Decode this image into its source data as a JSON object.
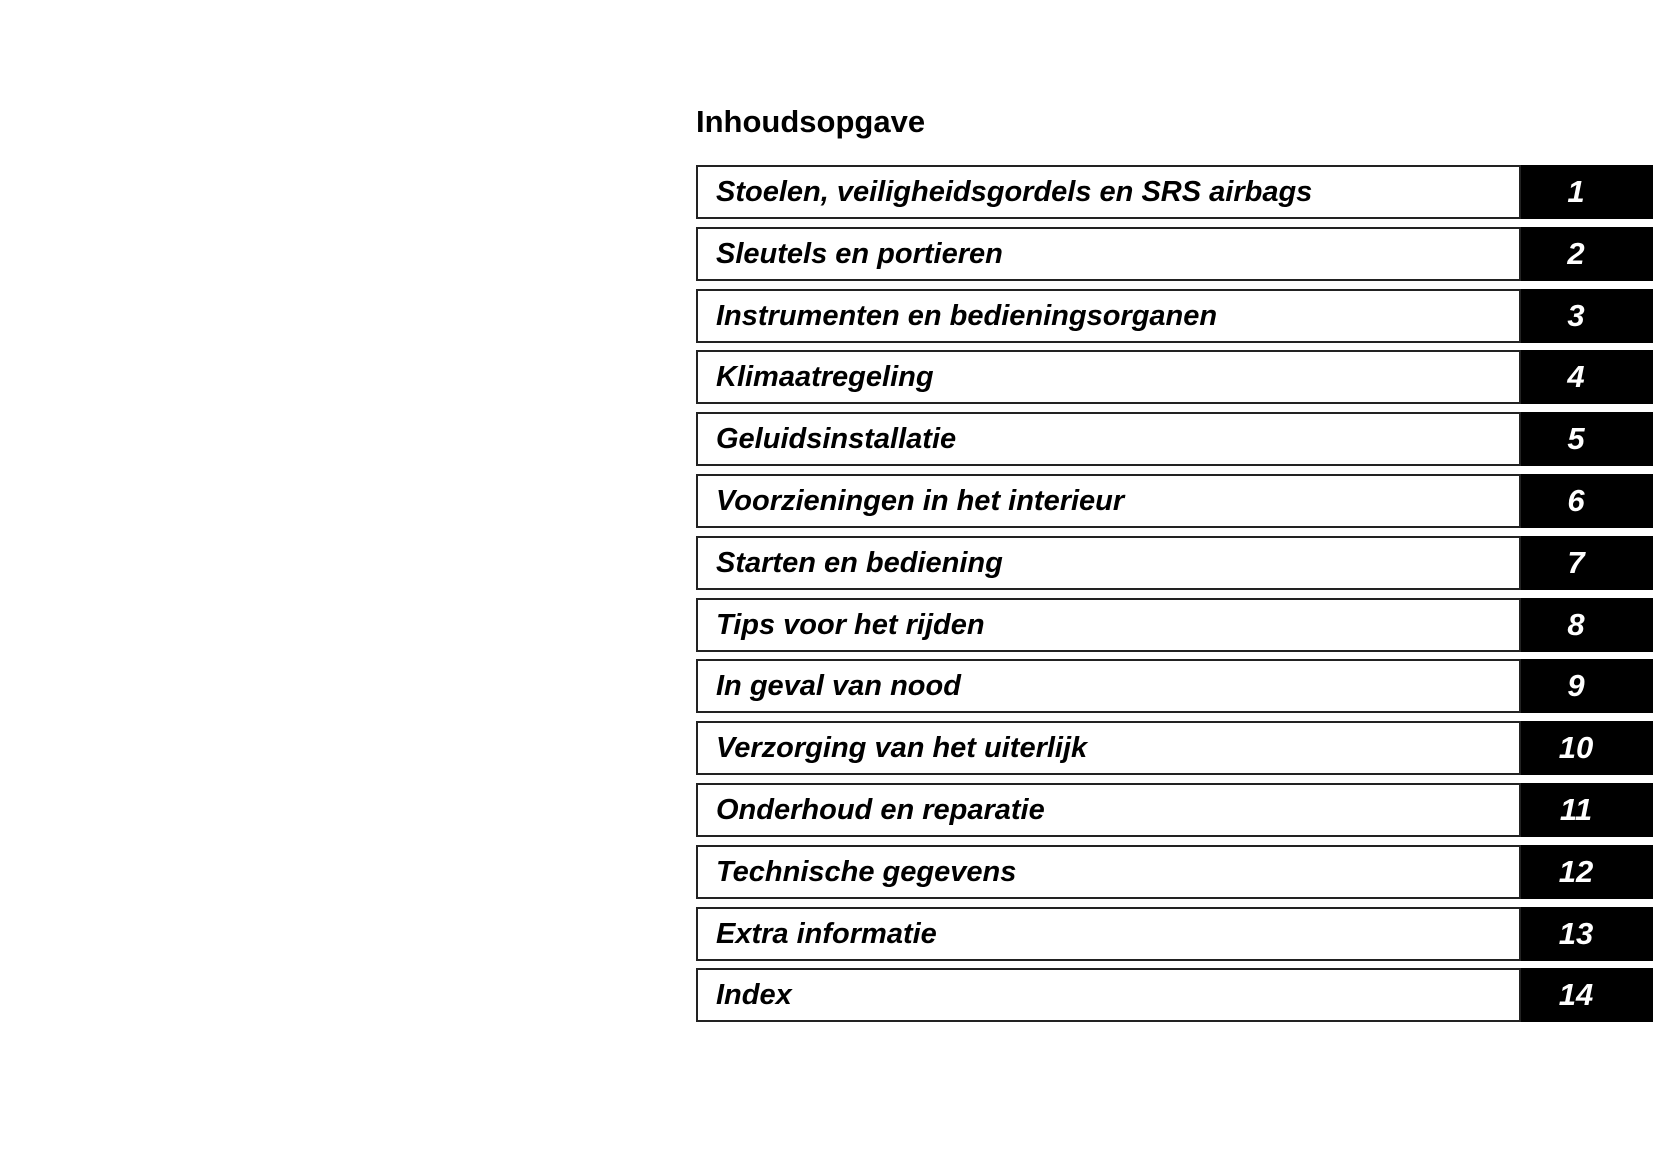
{
  "title": "Inhoudsopgave",
  "chapters": [
    {
      "label": "Stoelen, veiligheidsgordels en SRS airbags",
      "number": "1"
    },
    {
      "label": "Sleutels en portieren",
      "number": "2"
    },
    {
      "label": "Instrumenten en bedieningsorganen",
      "number": "3"
    },
    {
      "label": "Klimaatregeling",
      "number": "4"
    },
    {
      "label": "Geluidsinstallatie",
      "number": "5"
    },
    {
      "label": "Voorzieningen in het interieur",
      "number": "6"
    },
    {
      "label": "Starten en bediening",
      "number": "7"
    },
    {
      "label": "Tips voor het rijden",
      "number": "8"
    },
    {
      "label": "In geval van nood",
      "number": "9"
    },
    {
      "label": "Verzorging van het uiterlijk",
      "number": "10"
    },
    {
      "label": "Onderhoud en reparatie",
      "number": "11"
    },
    {
      "label": "Technische gegevens",
      "number": "12"
    },
    {
      "label": "Extra informatie",
      "number": "13"
    },
    {
      "label": "Index",
      "number": "14"
    }
  ]
}
